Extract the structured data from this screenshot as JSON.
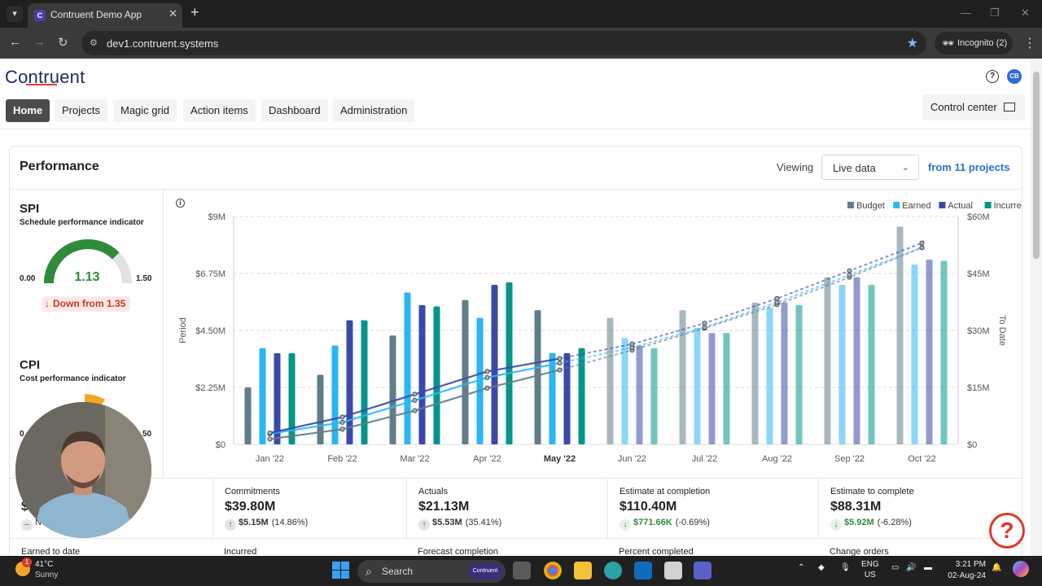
{
  "browser": {
    "tab_title": "Contruent Demo App",
    "url": "dev1.contruent.systems",
    "incognito_label": "Incognito (2)"
  },
  "app": {
    "logo": "Contruent",
    "avatar": "CB",
    "nav": [
      "Home",
      "Projects",
      "Magic grid",
      "Action items",
      "Dashboard",
      "Administration"
    ],
    "active_nav": "Home",
    "control_center": "Control center"
  },
  "performance": {
    "title": "Performance",
    "viewing_label": "Viewing",
    "viewing_value": "Live data",
    "projects_link": "from 11 projects",
    "spi": {
      "title": "SPI",
      "subtitle": "Schedule performance indicator",
      "min": "0.00",
      "max": "1.50",
      "value": "1.13",
      "fraction": 0.753,
      "trend": "Down from 1.35"
    },
    "cpi": {
      "title": "CPI",
      "subtitle": "Cost performance indicator"
    }
  },
  "colors": {
    "budget": "#607d8b",
    "earned": "#29b6f6",
    "actual": "#3949ab",
    "incurred": "#009688",
    "gauge_green": "#2e8b3a",
    "gauge_orange": "#f5a623"
  },
  "chart_data": {
    "type": "bar",
    "categories": [
      "Jan '22",
      "Feb '22",
      "Mar '22",
      "Apr '22",
      "May '22",
      "Jun '22",
      "Jul '22",
      "Aug '22",
      "Sep '22",
      "Oct '22"
    ],
    "current_category": "May '22",
    "forecast_from_index": 5,
    "y_left": {
      "label": "Period",
      "ticks": [
        "$0",
        "$2.25M",
        "$4.50M",
        "$6.75M",
        "$9M"
      ],
      "range": [
        0,
        9
      ]
    },
    "y_right": {
      "label": "To Date",
      "ticks": [
        "$0",
        "$15M",
        "$30M",
        "$45M",
        "$60M"
      ],
      "range": [
        0,
        60
      ]
    },
    "legend": [
      "Budget",
      "Earned",
      "Actual",
      "Incurred"
    ],
    "series": [
      {
        "name": "Budget",
        "values": [
          2.25,
          2.75,
          4.3,
          5.7,
          5.3,
          5.0,
          5.3,
          5.6,
          6.6,
          8.6
        ]
      },
      {
        "name": "Earned",
        "values": [
          3.8,
          3.9,
          6.0,
          5.0,
          3.6,
          4.2,
          4.6,
          5.4,
          6.3,
          7.1
        ]
      },
      {
        "name": "Actual",
        "values": [
          3.6,
          4.9,
          5.5,
          6.3,
          3.6,
          3.9,
          4.4,
          5.6,
          6.6,
          7.3
        ]
      },
      {
        "name": "Incurred",
        "values": [
          3.6,
          4.9,
          5.45,
          6.4,
          3.8,
          3.8,
          4.4,
          5.5,
          6.3,
          7.25
        ]
      }
    ],
    "cumulative": [
      {
        "name": "Budget",
        "values": [
          1.4,
          4.0,
          8.9,
          14.8,
          19.6,
          24.8,
          30.6,
          36.8,
          44.0,
          51.8
        ]
      },
      {
        "name": "Earned",
        "values": [
          2.8,
          5.8,
          11.6,
          17.6,
          21.4,
          25.5,
          30.8,
          37.4,
          44.6,
          51.8
        ]
      },
      {
        "name": "Actual",
        "values": [
          3.0,
          7.2,
          13.2,
          19.2,
          22.6,
          26.4,
          31.9,
          38.4,
          45.7,
          53.0
        ]
      }
    ]
  },
  "metrics": [
    {
      "label": "",
      "value": "$",
      "change": "N"
    },
    {
      "label": "Commitments",
      "value": "$39.80M",
      "change_amount": "$5.15M",
      "change_pct": "(14.86%)",
      "direction": "up"
    },
    {
      "label": "Actuals",
      "value": "$21.13M",
      "change_amount": "$5.53M",
      "change_pct": "(35.41%)",
      "direction": "up"
    },
    {
      "label": "Estimate at completion",
      "value": "$110.40M",
      "change_amount": "$771.66K",
      "change_pct": "(-0.69%)",
      "direction": "down"
    },
    {
      "label": "Estimate to complete",
      "value": "$88.31M",
      "change_amount": "$5.92M",
      "change_pct": "(-6.28%)",
      "direction": "down"
    }
  ],
  "metrics_row2": [
    "Earned to date",
    "Incurred",
    "Forecast completion",
    "Percent completed",
    "Change orders"
  ],
  "taskbar": {
    "weather_temp": "41°C",
    "weather_desc": "Sunny",
    "weather_badge": "1",
    "search": "Search",
    "search_pill": "Contruent",
    "lang_1": "ENG",
    "lang_2": "US",
    "time": "3:21 PM",
    "date": "02-Aug-24"
  }
}
